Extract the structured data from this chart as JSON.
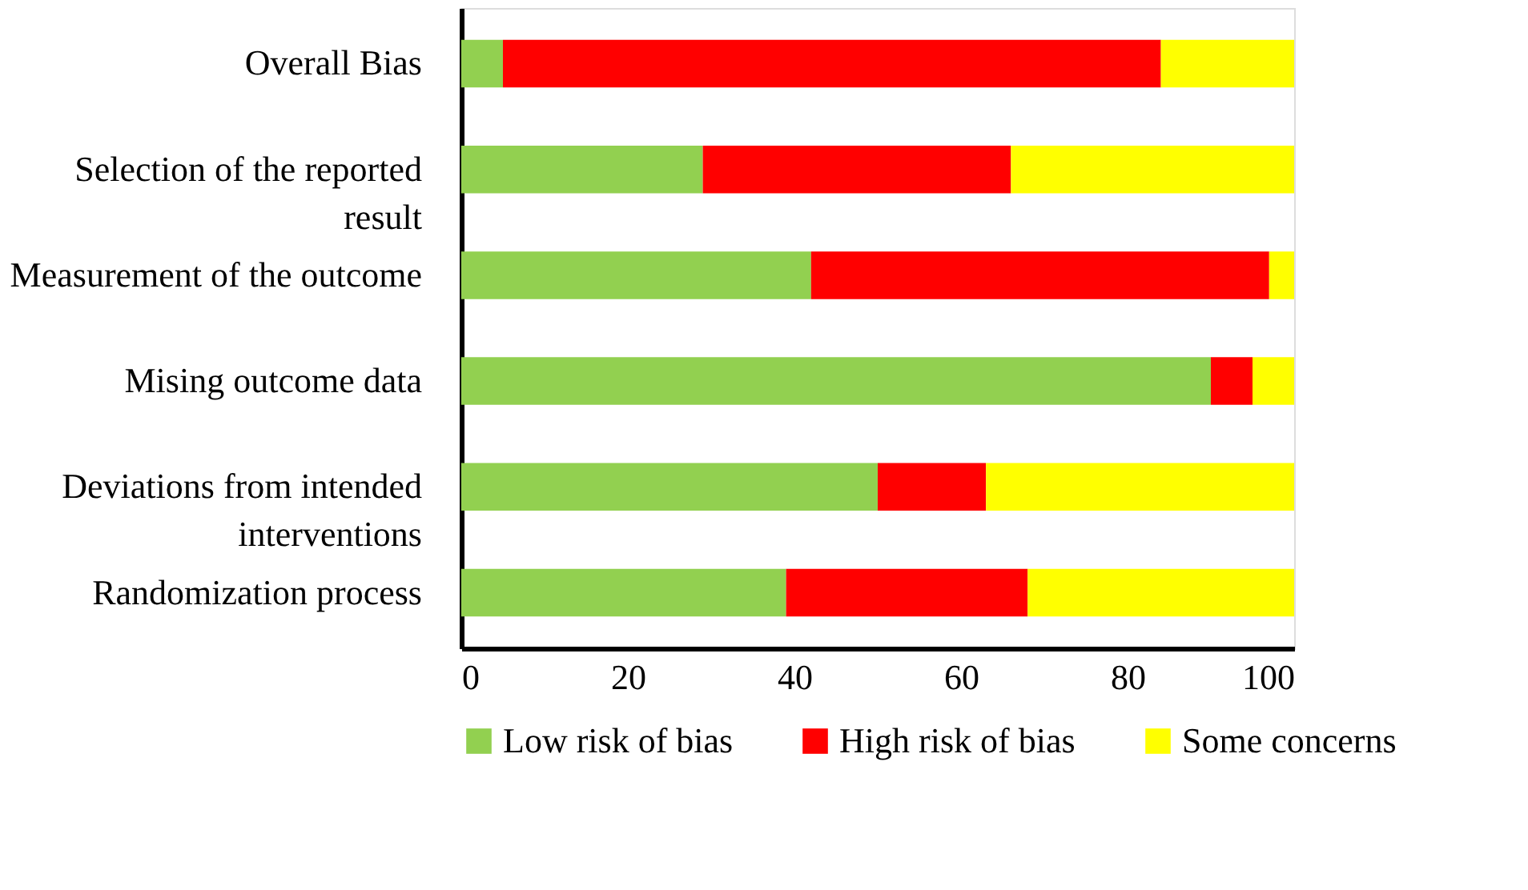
{
  "chart_data": {
    "type": "bar",
    "orientation": "horizontal",
    "stacked": true,
    "categories": [
      "Overall Bias",
      "Selection of the reported result",
      "Measurement of the outcome",
      "Mising outcome data",
      "Deviations from intended interventions",
      "Randomization process"
    ],
    "series": [
      {
        "name": "Low risk of bias",
        "color": "#92d050",
        "values": [
          5,
          29,
          42,
          90,
          50,
          39
        ]
      },
      {
        "name": "High risk of bias",
        "color": "#ff0000",
        "values": [
          79,
          37,
          55,
          5,
          13,
          29
        ]
      },
      {
        "name": "Some concerns",
        "color": "#ffff00",
        "values": [
          16,
          34,
          3,
          5,
          37,
          32
        ]
      }
    ],
    "xlim": [
      0,
      100
    ],
    "xticks": [
      0,
      20,
      40,
      60,
      80,
      100
    ],
    "grid": false,
    "legend": "bottom"
  }
}
